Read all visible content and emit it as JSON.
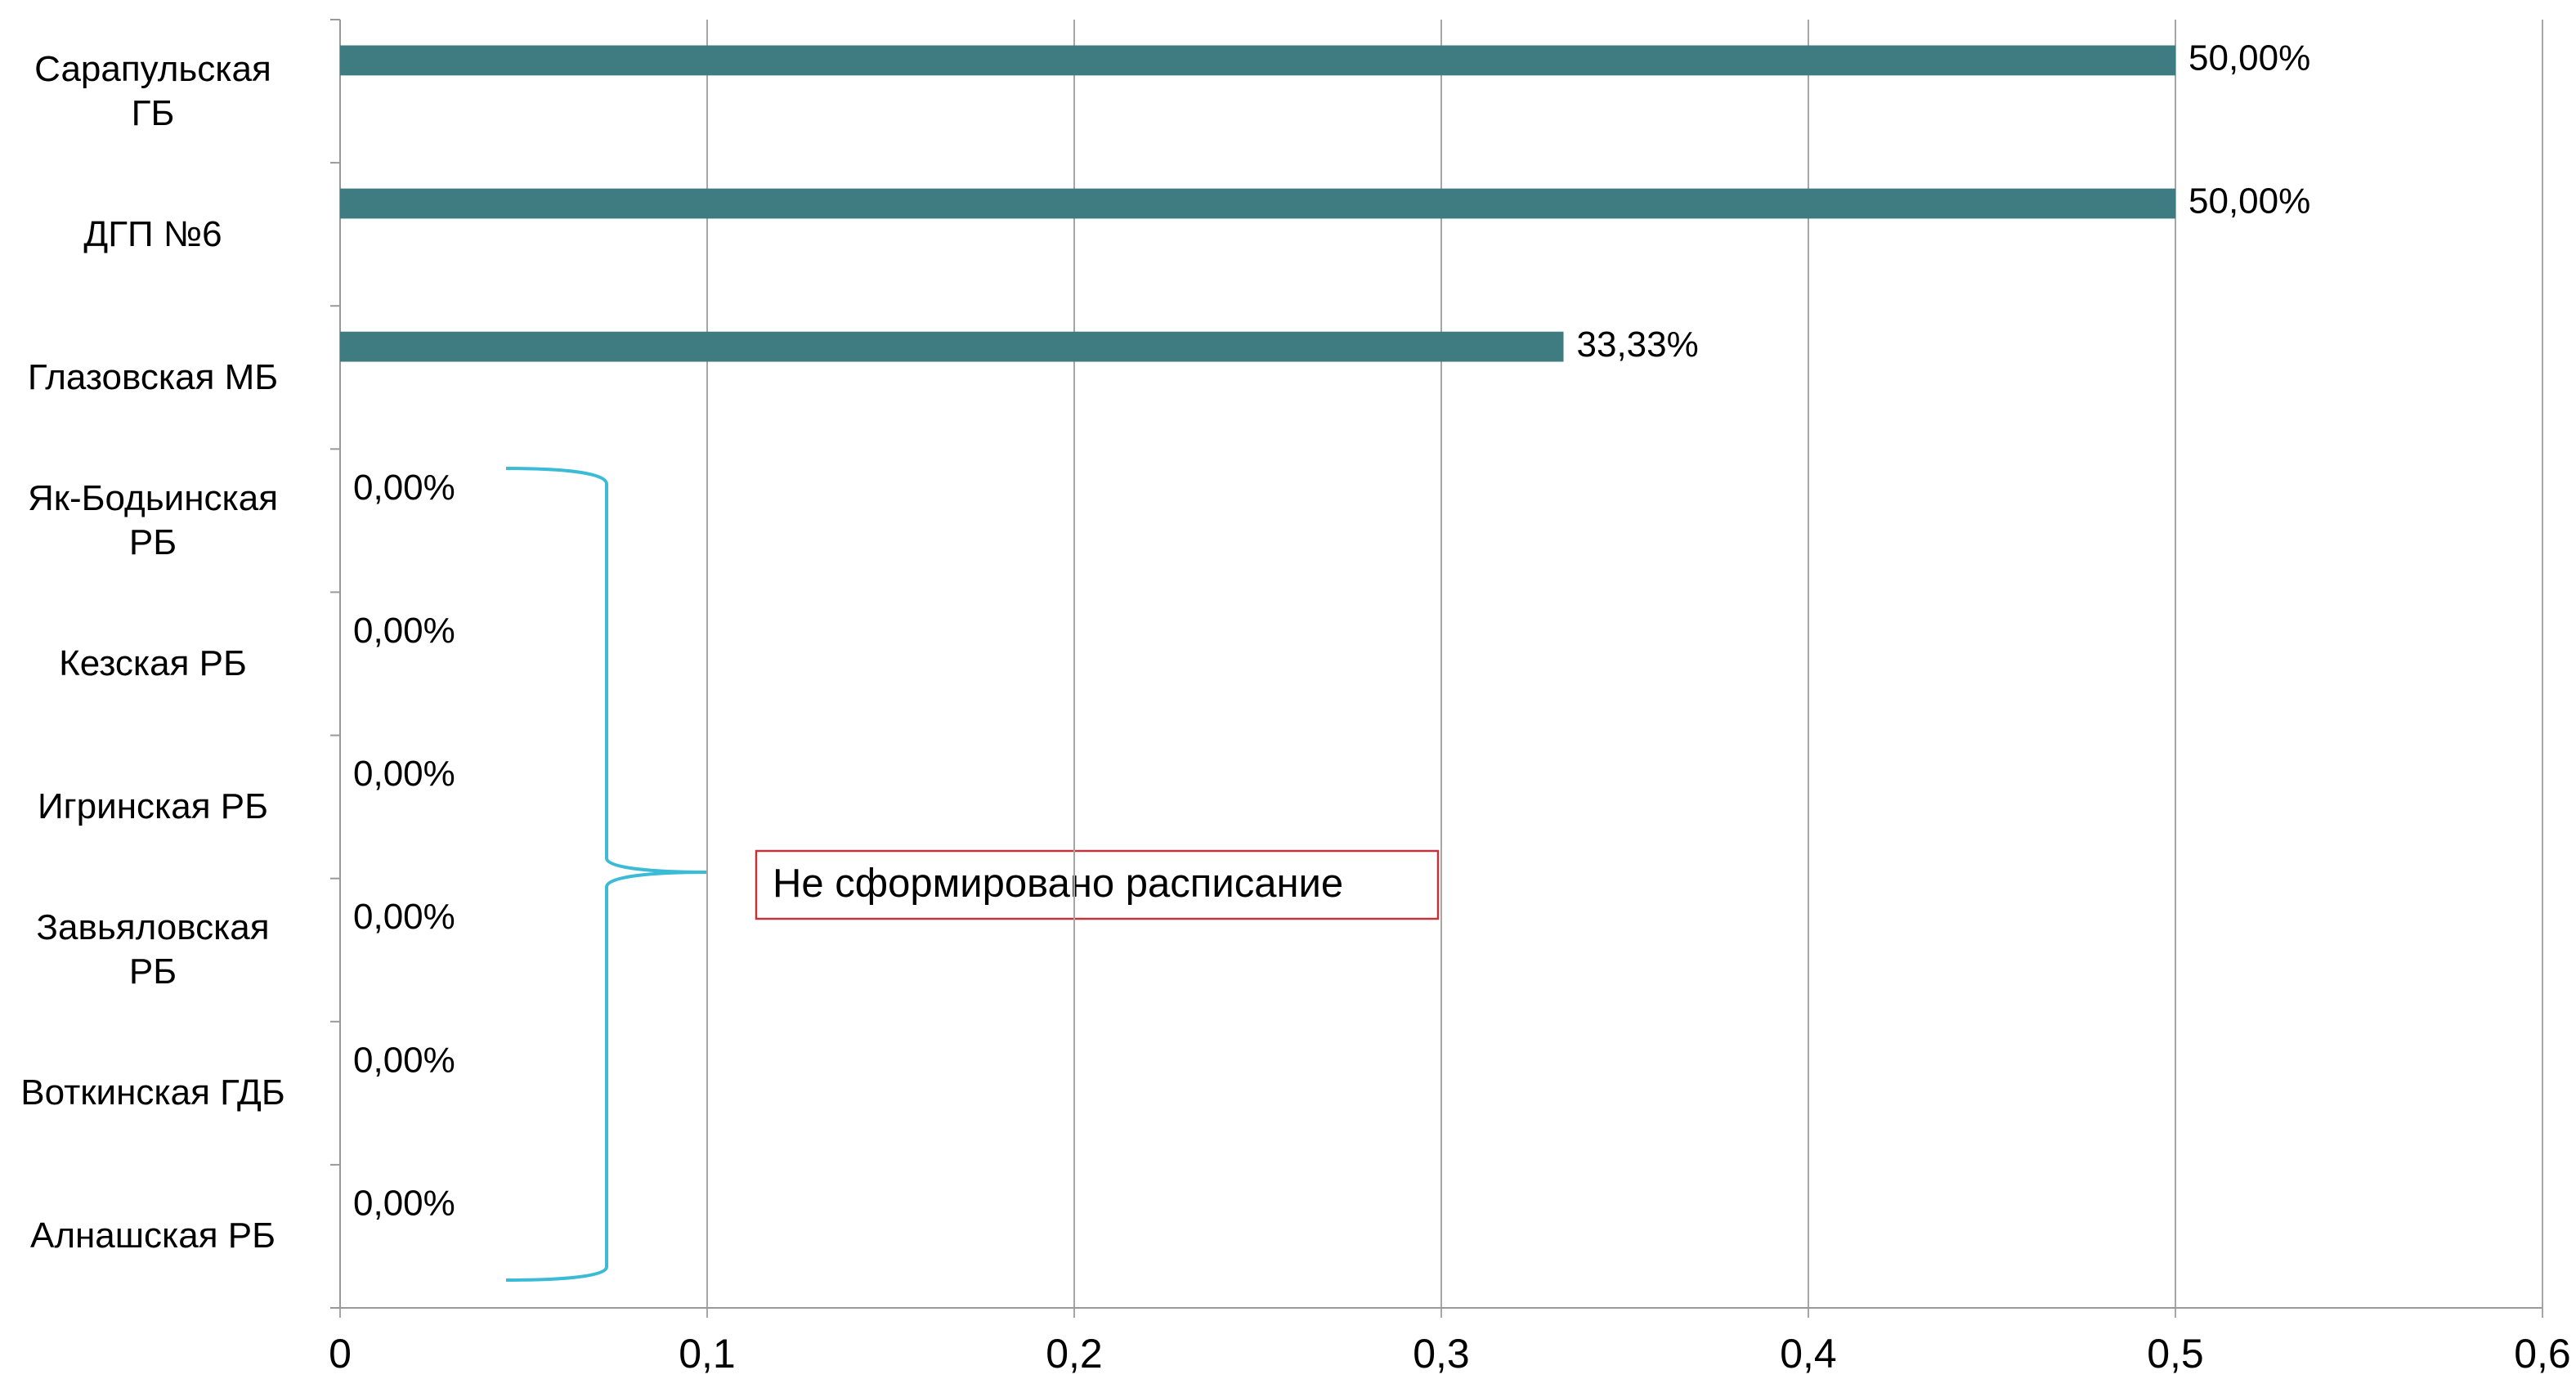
{
  "chart_data": {
    "type": "bar",
    "orientation": "horizontal",
    "categories": [
      "Сарапульская ГБ",
      "ДГП №6",
      "Глазовская МБ",
      "Як-Бодьинская РБ",
      "Кезская РБ",
      "Игринская РБ",
      "Завьяловская РБ",
      "Воткинская ГДБ",
      "Алнашская РБ"
    ],
    "values": [
      0.5,
      0.5,
      0.3333,
      0,
      0,
      0,
      0,
      0,
      0
    ],
    "value_labels": [
      "50,00%",
      "50,00%",
      "33,33%",
      "0,00%",
      "0,00%",
      "0,00%",
      "0,00%",
      "0,00%",
      "0,00%"
    ],
    "color": "#3e7c82",
    "xlim": [
      0,
      0.6
    ],
    "xticks": [
      0,
      {
        "value": 0.1,
        "label": "0,1"
      },
      {
        "value": 0.2,
        "label": "0,2"
      },
      {
        "value": 0.3,
        "label": "0,3"
      },
      {
        "value": 0.4,
        "label": "0,4"
      },
      {
        "value": 0.5,
        "label": "0,5"
      },
      {
        "value": 0.6,
        "label": "0,6"
      }
    ],
    "grid": true,
    "annotation": "Не сформировано расписание"
  }
}
